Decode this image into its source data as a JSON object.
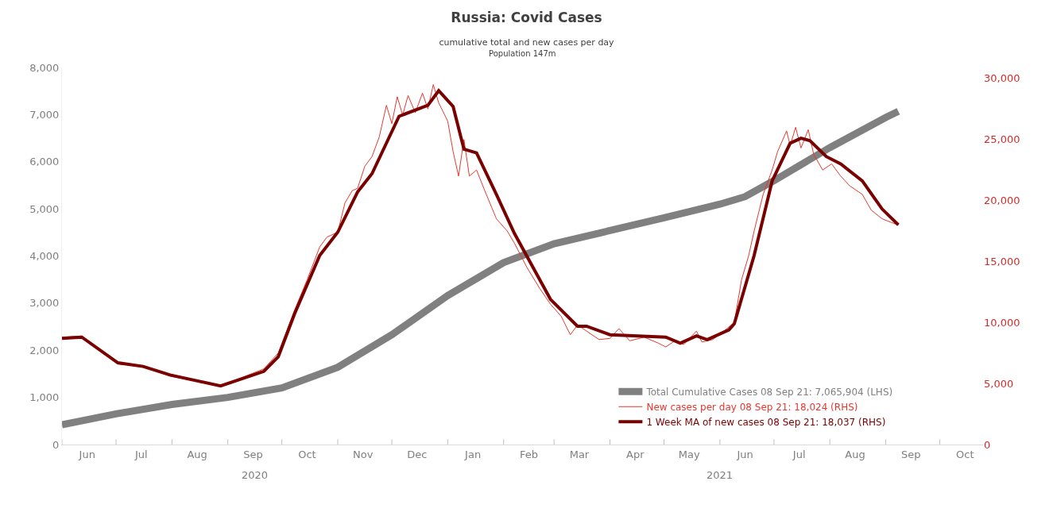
{
  "chart_data": {
    "type": "line",
    "title": "Russia: Covid Cases",
    "subtitle": "cumulative total and new cases per day",
    "annotations": [
      "Population 147m"
    ],
    "xlim": [
      "2020-06-01",
      "2021-10-25"
    ],
    "xticks": [
      {
        "value": "2020-06-01",
        "label": null
      },
      {
        "value": "2020-06-15",
        "label": "Jun"
      },
      {
        "value": "2020-07-01",
        "label": null
      },
      {
        "value": "2020-07-15",
        "label": "Jul"
      },
      {
        "value": "2020-08-01",
        "label": null
      },
      {
        "value": "2020-08-15",
        "label": "Aug"
      },
      {
        "value": "2020-09-01",
        "label": null
      },
      {
        "value": "2020-09-15",
        "label": "Sep"
      },
      {
        "value": "2020-10-01",
        "label": null
      },
      {
        "value": "2020-10-15",
        "label": "Oct"
      },
      {
        "value": "2020-11-01",
        "label": null
      },
      {
        "value": "2020-11-15",
        "label": "Nov"
      },
      {
        "value": "2020-12-01",
        "label": null
      },
      {
        "value": "2020-12-15",
        "label": "Dec"
      },
      {
        "value": "2021-01-01",
        "label": null
      },
      {
        "value": "2021-01-15",
        "label": "Jan"
      },
      {
        "value": "2021-02-01",
        "label": null
      },
      {
        "value": "2021-02-15",
        "label": "Feb"
      },
      {
        "value": "2021-03-01",
        "label": null
      },
      {
        "value": "2021-03-15",
        "label": "Mar"
      },
      {
        "value": "2021-04-01",
        "label": null
      },
      {
        "value": "2021-04-15",
        "label": "Apr"
      },
      {
        "value": "2021-05-01",
        "label": null
      },
      {
        "value": "2021-05-15",
        "label": "May"
      },
      {
        "value": "2021-06-01",
        "label": null
      },
      {
        "value": "2021-06-15",
        "label": "Jun"
      },
      {
        "value": "2021-07-01",
        "label": null
      },
      {
        "value": "2021-07-15",
        "label": "Jul"
      },
      {
        "value": "2021-08-01",
        "label": null
      },
      {
        "value": "2021-08-15",
        "label": "Aug"
      },
      {
        "value": "2021-09-01",
        "label": null
      },
      {
        "value": "2021-09-15",
        "label": "Sep"
      },
      {
        "value": "2021-10-01",
        "label": null
      },
      {
        "value": "2021-10-15",
        "label": "Oct"
      }
    ],
    "x2lim": [
      "2020-06-01",
      "2021-10-25"
    ],
    "x2ticks": [
      {
        "value": "2020-09-16",
        "label": "2020"
      },
      {
        "value": "2021-06-01",
        "label": "2021"
      }
    ],
    "ylim": [
      0,
      8000
    ],
    "yticks": [
      {
        "value": 0,
        "label": "0"
      },
      {
        "value": 1000,
        "label": "1,000"
      },
      {
        "value": 2000,
        "label": "2,000"
      },
      {
        "value": 3000,
        "label": "3,000"
      },
      {
        "value": 4000,
        "label": "4,000"
      },
      {
        "value": 5000,
        "label": "5,000"
      },
      {
        "value": 6000,
        "label": "6,000"
      },
      {
        "value": 7000,
        "label": "7,000"
      },
      {
        "value": 8000,
        "label": "8,000"
      }
    ],
    "y2lim": [
      0,
      30900
    ],
    "y2ticks": [
      {
        "value": 0,
        "label": "0"
      },
      {
        "value": 5000,
        "label": "5,000"
      },
      {
        "value": 10000,
        "label": "10,000"
      },
      {
        "value": 15000,
        "label": "15,000"
      },
      {
        "value": 20000,
        "label": "20,000"
      },
      {
        "value": 25000,
        "label": "25,000"
      },
      {
        "value": 30000,
        "label": "30,000"
      }
    ],
    "legend": "bottom right",
    "marker": "none",
    "line_style": "solid",
    "series": [
      {
        "name": "Total Cumulative Cases 08 Sep 21: 7,065,904 (LHS)",
        "color": "#808080",
        "axis": "y",
        "x": [
          "2020-06-01",
          "2020-07-01",
          "2020-08-01",
          "2020-09-01",
          "2020-10-01",
          "2020-11-01",
          "2020-12-01",
          "2021-01-01",
          "2021-02-01",
          "2021-03-01",
          "2021-04-01",
          "2021-05-01",
          "2021-06-01",
          "2021-06-15",
          "2021-07-01",
          "2021-08-01",
          "2021-09-01",
          "2021-09-08"
        ],
        "values": [
          420,
          650,
          850,
          1000,
          1200,
          1640,
          2330,
          3160,
          3860,
          4260,
          4540,
          4810,
          5100,
          5260,
          5600,
          6300,
          6940,
          7070
        ]
      },
      {
        "name": "New cases per day 08 Sep 21: 18,024 (RHS)",
        "color": "#e8382f",
        "axis": "y2",
        "x": [
          "2020-06-01",
          "2020-06-12",
          "2020-07-02",
          "2020-07-16",
          "2020-07-31",
          "2020-08-28",
          "2020-09-21",
          "2020-09-29",
          "2020-10-08",
          "2020-10-15",
          "2020-10-22",
          "2020-10-26",
          "2020-11-01",
          "2020-11-05",
          "2020-11-09",
          "2020-11-12",
          "2020-11-16",
          "2020-11-20",
          "2020-11-24",
          "2020-11-28",
          "2020-12-01",
          "2020-12-04",
          "2020-12-07",
          "2020-12-10",
          "2020-12-14",
          "2020-12-18",
          "2020-12-21",
          "2020-12-24",
          "2020-12-27",
          "2021-01-01",
          "2021-01-04",
          "2021-01-07",
          "2021-01-10",
          "2021-01-13",
          "2021-01-17",
          "2021-01-21",
          "2021-01-28",
          "2021-02-03",
          "2021-02-07",
          "2021-02-14",
          "2021-02-21",
          "2021-02-27",
          "2021-03-05",
          "2021-03-10",
          "2021-03-14",
          "2021-03-19",
          "2021-03-26",
          "2021-04-01",
          "2021-04-06",
          "2021-04-12",
          "2021-04-20",
          "2021-04-28",
          "2021-05-02",
          "2021-05-07",
          "2021-05-12",
          "2021-05-19",
          "2021-05-22",
          "2021-05-28",
          "2021-06-04",
          "2021-06-09",
          "2021-06-13",
          "2021-06-17",
          "2021-06-20",
          "2021-06-25",
          "2021-06-30",
          "2021-07-03",
          "2021-07-08",
          "2021-07-10",
          "2021-07-13",
          "2021-07-16",
          "2021-07-20",
          "2021-07-23",
          "2021-07-28",
          "2021-08-02",
          "2021-08-07",
          "2021-08-12",
          "2021-08-19",
          "2021-08-24",
          "2021-08-30",
          "2021-09-04",
          "2021-09-08"
        ],
        "values": [
          8800,
          8900,
          6600,
          6400,
          5600,
          4800,
          6200,
          7500,
          11000,
          13500,
          16200,
          17000,
          17400,
          19800,
          20800,
          21000,
          22800,
          23600,
          25200,
          27800,
          26300,
          28500,
          27000,
          28600,
          27200,
          28800,
          27500,
          29500,
          28000,
          26500,
          24000,
          22000,
          25000,
          22000,
          22500,
          21000,
          18500,
          17500,
          16500,
          14500,
          12800,
          11500,
          10500,
          9000,
          9800,
          9300,
          8600,
          8700,
          9500,
          8500,
          8800,
          8300,
          8000,
          8500,
          8200,
          9300,
          8400,
          8600,
          9400,
          10000,
          13500,
          15500,
          17500,
          20500,
          22500,
          24000,
          25700,
          24500,
          26000,
          24300,
          25800,
          23800,
          22500,
          23000,
          22000,
          21200,
          20500,
          19200,
          18500,
          18200,
          18000
        ]
      },
      {
        "name": "1 Week MA of new cases 08 Sep 21: 18,037 (RHS)",
        "color": "#7a0000",
        "axis": "y2",
        "x": [
          "2020-06-01",
          "2020-06-12",
          "2020-07-02",
          "2020-07-16",
          "2020-07-31",
          "2020-08-28",
          "2020-09-21",
          "2020-09-29",
          "2020-10-08",
          "2020-10-22",
          "2020-11-01",
          "2020-11-12",
          "2020-11-20",
          "2020-12-05",
          "2020-12-21",
          "2020-12-27",
          "2021-01-04",
          "2021-01-10",
          "2021-01-17",
          "2021-01-28",
          "2021-02-07",
          "2021-02-27",
          "2021-03-14",
          "2021-03-19",
          "2021-04-01",
          "2021-05-02",
          "2021-05-10",
          "2021-05-19",
          "2021-05-25",
          "2021-06-06",
          "2021-06-09",
          "2021-06-20",
          "2021-06-30",
          "2021-07-10",
          "2021-07-16",
          "2021-07-21",
          "2021-07-30",
          "2021-08-07",
          "2021-08-19",
          "2021-08-30",
          "2021-09-08"
        ],
        "values": [
          8700,
          8800,
          6700,
          6400,
          5700,
          4800,
          6000,
          7200,
          10700,
          15500,
          17400,
          20700,
          22200,
          26900,
          27800,
          29000,
          27700,
          24200,
          23900,
          20500,
          17300,
          11900,
          9700,
          9700,
          9000,
          8800,
          8300,
          8900,
          8600,
          9400,
          9900,
          15500,
          21600,
          24700,
          25100,
          24900,
          23600,
          23000,
          21600,
          19300,
          18000
        ]
      }
    ]
  }
}
